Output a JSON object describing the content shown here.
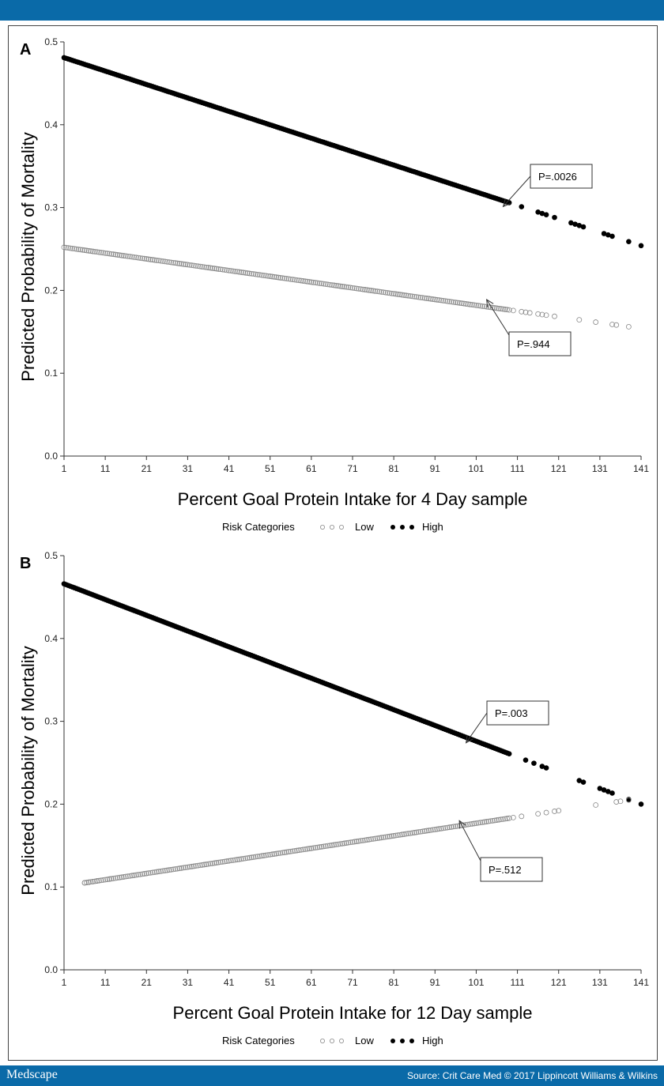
{
  "header": {
    "brand": "Medscape",
    "source": "Source: Crit Care Med © 2017 Lippincott Williams & Wilkins"
  },
  "colors": {
    "bar": "#0a6aa8",
    "high": "#000000",
    "low": "#888888"
  },
  "chart_data": [
    {
      "type": "scatter",
      "panel_label": "A",
      "xlabel": "Percent Goal Protein Intake for 4 Day sample",
      "ylabel": "Predicted Probability of Mortality",
      "xlim": [
        1,
        141
      ],
      "ylim": [
        0,
        0.5
      ],
      "xticks": [
        1,
        11,
        21,
        31,
        41,
        51,
        61,
        71,
        81,
        91,
        101,
        111,
        121,
        131,
        141
      ],
      "yticks": [
        0.0,
        0.1,
        0.2,
        0.3,
        0.4,
        0.5
      ],
      "ytick_labels": [
        "0.0",
        "0.1",
        "0.2",
        "0.3",
        "0.4",
        "0.5"
      ],
      "legend": {
        "title": "Risk Categories",
        "placement": "bottom-center",
        "entries": [
          "Low",
          "High"
        ]
      },
      "series": [
        {
          "name": "High",
          "marker": "filled-circle",
          "line": {
            "x": [
              1,
              141
            ],
            "y": [
              0.481,
              0.254
            ]
          },
          "sparse_x": [
            112,
            116,
            117,
            118,
            120,
            124,
            125,
            126,
            127,
            132,
            133,
            134,
            138,
            141
          ]
        },
        {
          "name": "Low",
          "marker": "open-circle",
          "line": {
            "x": [
              1,
              141
            ],
            "y": [
              0.252,
              0.154
            ]
          },
          "sparse_x": [
            108,
            110,
            112,
            113,
            114,
            116,
            117,
            118,
            120,
            126,
            130,
            134,
            135,
            138
          ]
        }
      ],
      "annotations": [
        {
          "text": "P=.0026",
          "series": "High",
          "at_x": 106
        },
        {
          "text": "P=.944",
          "series": "Low",
          "at_x": 102
        }
      ]
    },
    {
      "type": "scatter",
      "panel_label": "B",
      "xlabel": "Percent Goal Protein Intake for 12 Day sample",
      "ylabel": "Predicted Probability of Mortality",
      "xlim": [
        1,
        141
      ],
      "ylim": [
        0,
        0.5
      ],
      "xticks": [
        1,
        11,
        21,
        31,
        41,
        51,
        61,
        71,
        81,
        91,
        101,
        111,
        121,
        131,
        141
      ],
      "yticks": [
        0.0,
        0.1,
        0.2,
        0.3,
        0.4,
        0.5
      ],
      "ytick_labels": [
        "0.0",
        "0.1",
        "0.2",
        "0.3",
        "0.4",
        "0.5"
      ],
      "legend": {
        "title": "Risk Categories",
        "placement": "bottom-center",
        "entries": [
          "Low",
          "High"
        ]
      },
      "series": [
        {
          "name": "High",
          "marker": "filled-circle",
          "line": {
            "x": [
              1,
              141
            ],
            "y": [
              0.466,
              0.2
            ]
          },
          "sparse_x": [
            113,
            115,
            117,
            118,
            126,
            127,
            131,
            132,
            133,
            134,
            138,
            141
          ]
        },
        {
          "name": "Low",
          "marker": "open-circle",
          "line": {
            "x": [
              6,
              138
            ],
            "y": [
              0.105,
              0.205
            ]
          },
          "sparse_x": [
            6,
            7,
            8,
            9,
            12,
            110,
            112,
            116,
            118,
            120,
            121,
            130,
            135,
            136,
            138
          ]
        }
      ],
      "annotations": [
        {
          "text": "P=.003",
          "series": "High",
          "at_x": 97
        },
        {
          "text": "P=.512",
          "series": "Low",
          "at_x": 95
        }
      ]
    }
  ]
}
